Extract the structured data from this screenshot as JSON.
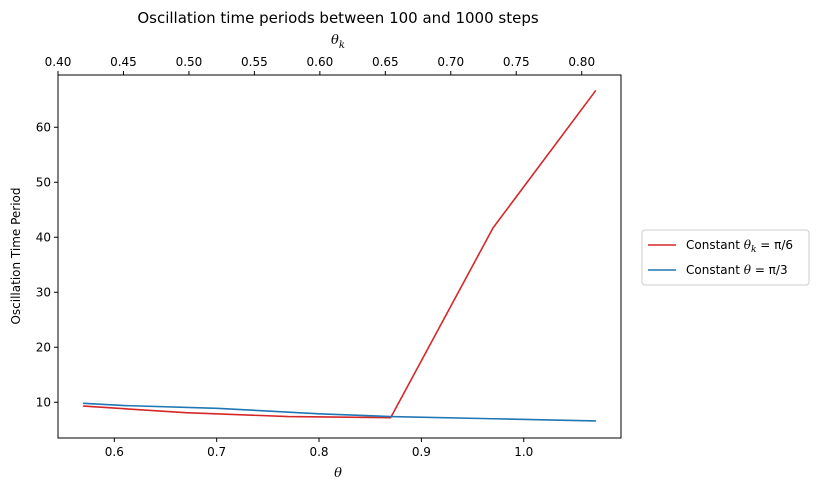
{
  "chart_data": {
    "type": "line",
    "title": "Oscillation time periods between 100 and 1000 steps",
    "ylabel": "Oscillation Time Period",
    "xlabel_bottom": "θ",
    "xlabel_top": "θ_k",
    "xlim_bottom": [
      0.545,
      1.095
    ],
    "xlim_top": [
      0.4,
      0.83
    ],
    "ylim": [
      3.5,
      69.5
    ],
    "xticks_bottom": [
      "0.6",
      "0.7",
      "0.8",
      "0.9",
      "1.0"
    ],
    "xticks_bottom_values": [
      0.6,
      0.7,
      0.8,
      0.9,
      1.0
    ],
    "xticks_top": [
      "0.40",
      "0.45",
      "0.50",
      "0.55",
      "0.60",
      "0.65",
      "0.70",
      "0.75",
      "0.80"
    ],
    "xticks_top_values": [
      0.4,
      0.45,
      0.5,
      0.55,
      0.6,
      0.65,
      0.7,
      0.75,
      0.8
    ],
    "yticks": [
      "10",
      "20",
      "30",
      "40",
      "50",
      "60"
    ],
    "yticks_values": [
      10,
      20,
      30,
      40,
      50,
      60
    ],
    "grid": false,
    "legend_position": "outside-right",
    "series": [
      {
        "name": "Constant θ_k = π/6",
        "color": "#d62728",
        "x": [
          0.57,
          0.67,
          0.77,
          0.87,
          0.97,
          1.07
        ],
        "values": [
          9.3,
          8.1,
          7.4,
          7.2,
          41.7,
          66.6
        ]
      },
      {
        "name": "Constant θ = π/3",
        "color": "#1f77b4",
        "x": [
          0.57,
          0.61,
          0.7,
          0.8,
          0.87,
          0.97,
          1.07
        ],
        "values": [
          9.8,
          9.4,
          8.9,
          7.9,
          7.4,
          7.0,
          6.6
        ]
      }
    ]
  }
}
